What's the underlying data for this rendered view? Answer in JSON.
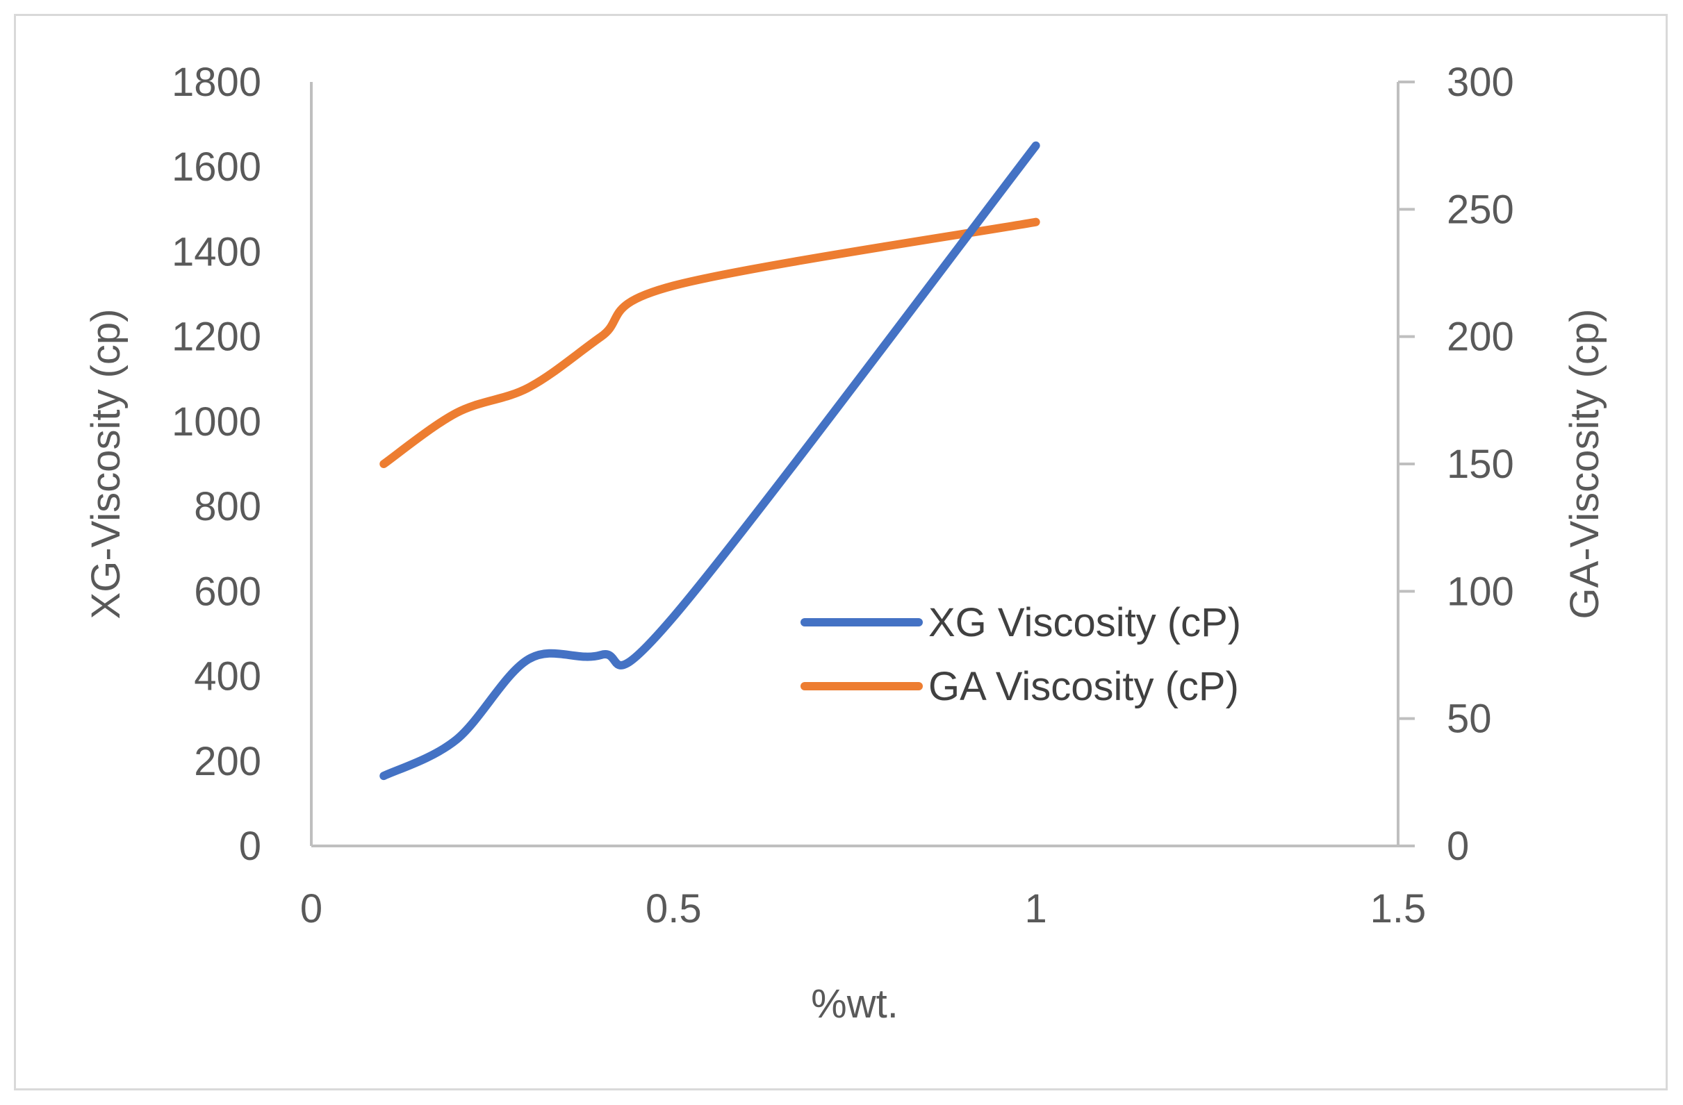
{
  "chart_data": {
    "type": "line",
    "title": "",
    "xlabel": "%wt.",
    "ylabel": "XG-Viscosity (cp)",
    "y2label": "GA-Viscosity (cp)",
    "xlim": [
      0,
      1.5
    ],
    "ylim": [
      0,
      1800
    ],
    "y2lim": [
      0,
      300
    ],
    "x_ticks": [
      "0",
      "0.5",
      "1",
      "1.5"
    ],
    "x_tick_values": [
      0,
      0.5,
      1,
      1.5
    ],
    "y_ticks": [
      "0",
      "200",
      "400",
      "600",
      "800",
      "1000",
      "1200",
      "1400",
      "1600",
      "1800"
    ],
    "y_tick_values": [
      0,
      200,
      400,
      600,
      800,
      1000,
      1200,
      1400,
      1600,
      1800
    ],
    "y2_ticks": [
      "0",
      "50",
      "100",
      "150",
      "200",
      "250",
      "300"
    ],
    "y2_tick_values": [
      0,
      50,
      100,
      150,
      200,
      250,
      300
    ],
    "grid": false,
    "legend_position": "center-right",
    "series": [
      {
        "name": "XG Viscosity (cP)",
        "axis": "left",
        "color": "#4472C4",
        "x": [
          0.1,
          0.2,
          0.3,
          0.4,
          0.5,
          1.0
        ],
        "values": [
          165,
          250,
          440,
          450,
          540,
          1650
        ]
      },
      {
        "name": "GA Viscosity (cP)",
        "axis": "right",
        "color": "#ED7D31",
        "x": [
          0.1,
          0.2,
          0.3,
          0.4,
          0.5,
          1.0
        ],
        "values": [
          150,
          170,
          180,
          200,
          220,
          245
        ]
      }
    ]
  }
}
